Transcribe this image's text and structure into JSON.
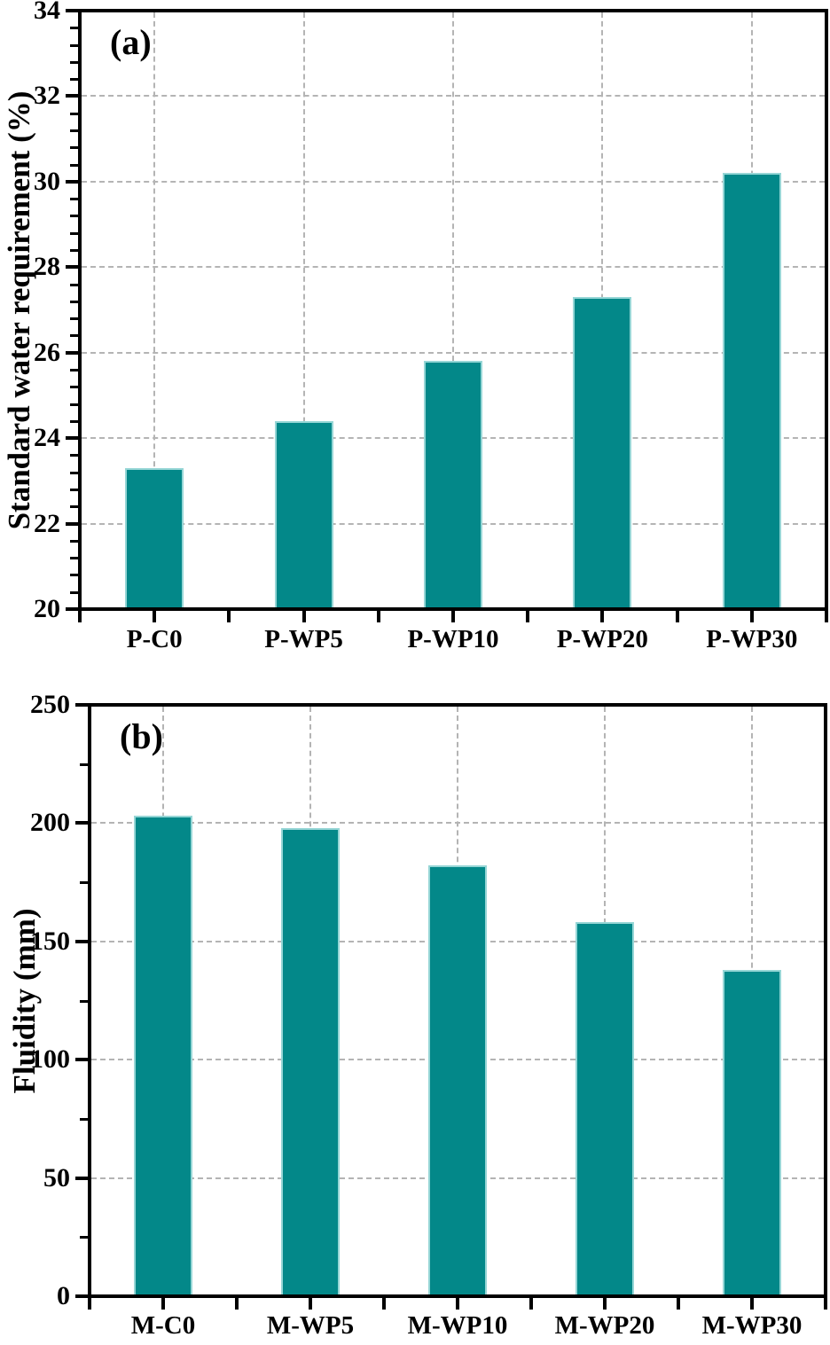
{
  "colors": {
    "background": "#ffffff",
    "axis": "#000000",
    "text": "#000000",
    "gridline": "#b4b4b4",
    "bar_fill": "#038889",
    "bar_edge": "#96d6d6"
  },
  "chart_data": [
    {
      "type": "bar",
      "panel_label": "(a)",
      "ylabel": "Standard water requirement (%)",
      "xlabel": "",
      "categories": [
        "P-C0",
        "P-WP5",
        "P-WP10",
        "P-WP20",
        "P-WP30"
      ],
      "values": [
        23.3,
        24.4,
        25.8,
        27.3,
        30.2
      ],
      "ylim": [
        20,
        34
      ],
      "yticks": [
        20,
        22,
        24,
        26,
        28,
        30,
        32,
        34
      ],
      "y_minor_divisions": 5,
      "grid": true,
      "grid_style": "dashed horizontal at major ticks, dashed vertical at category centers",
      "legend": "none"
    },
    {
      "type": "bar",
      "panel_label": "(b)",
      "ylabel": "Fluidity (mm)",
      "xlabel": "",
      "categories": [
        "M-C0",
        "M-WP5",
        "M-WP10",
        "M-WP20",
        "M-WP30"
      ],
      "values": [
        203,
        198,
        182,
        158,
        138
      ],
      "ylim": [
        0,
        250
      ],
      "yticks": [
        0,
        50,
        100,
        150,
        200,
        250
      ],
      "y_minor_divisions": 2,
      "grid": true,
      "grid_style": "dashed horizontal at major ticks, dashed vertical at category centers",
      "legend": "none"
    }
  ]
}
